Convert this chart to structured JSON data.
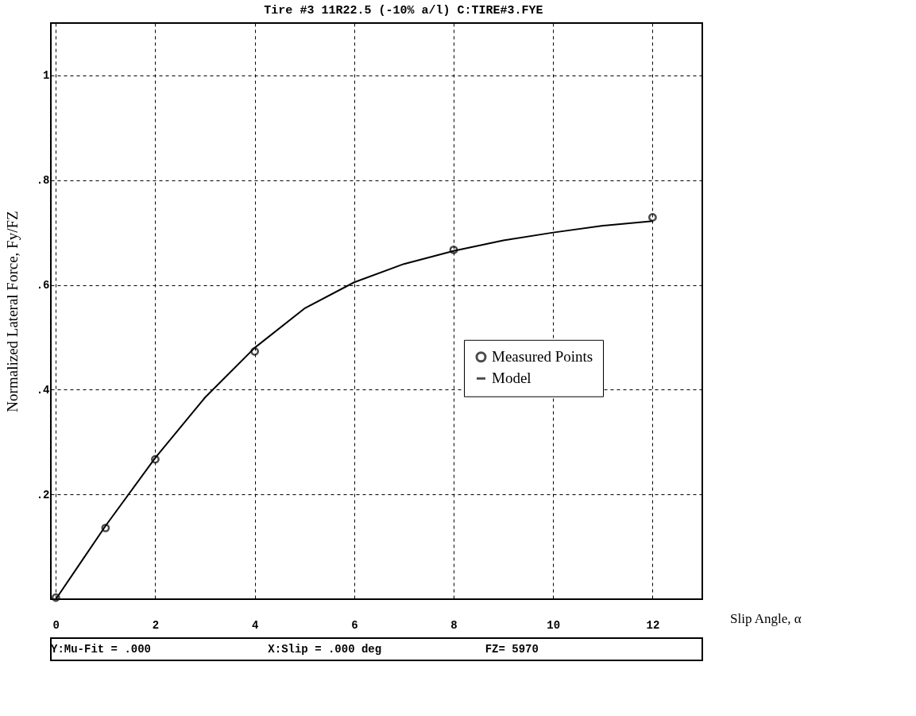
{
  "chart_data": {
    "type": "line",
    "title": "Tire #3     11R22.5 (-10% a/l)     C:TIRE#3.FYE",
    "xlabel": "Slip Angle, α",
    "ylabel": "Normalized Lateral Force, Fy/FZ",
    "xlim": [
      -0.1,
      13
    ],
    "ylim": [
      0,
      1.1
    ],
    "xticks": [
      0,
      2,
      4,
      6,
      8,
      10,
      12
    ],
    "yticks": [
      {
        "value": 0.2,
        "label": ".2"
      },
      {
        "value": 0.4,
        "label": ".4"
      },
      {
        "value": 0.6,
        "label": ".6"
      },
      {
        "value": 0.8,
        "label": ".8"
      },
      {
        "value": 1,
        "label": "1"
      }
    ],
    "grid": true,
    "legend": "right",
    "series": [
      {
        "name": "Measured Points",
        "type": "scatter",
        "marker": "circle",
        "color": "#000000",
        "x": [
          0,
          1,
          2,
          4,
          8,
          12
        ],
        "values": [
          0.003,
          0.136,
          0.267,
          0.473,
          0.667,
          0.729
        ]
      },
      {
        "name": "Model",
        "marker": "none",
        "line_style": "solid",
        "color": "#000000",
        "x": [
          0,
          0.5,
          1,
          2,
          3,
          4,
          5,
          6,
          7,
          8,
          9,
          10,
          11,
          12
        ],
        "values": [
          0,
          0.07,
          0.14,
          0.27,
          0.385,
          0.48,
          0.555,
          0.605,
          0.64,
          0.665,
          0.685,
          0.7,
          0.713,
          0.722
        ]
      }
    ],
    "annotations": [
      "Y:Mu-Fit  =     .000",
      "X:Slip =        .000  deg",
      "FZ=   5970"
    ]
  }
}
